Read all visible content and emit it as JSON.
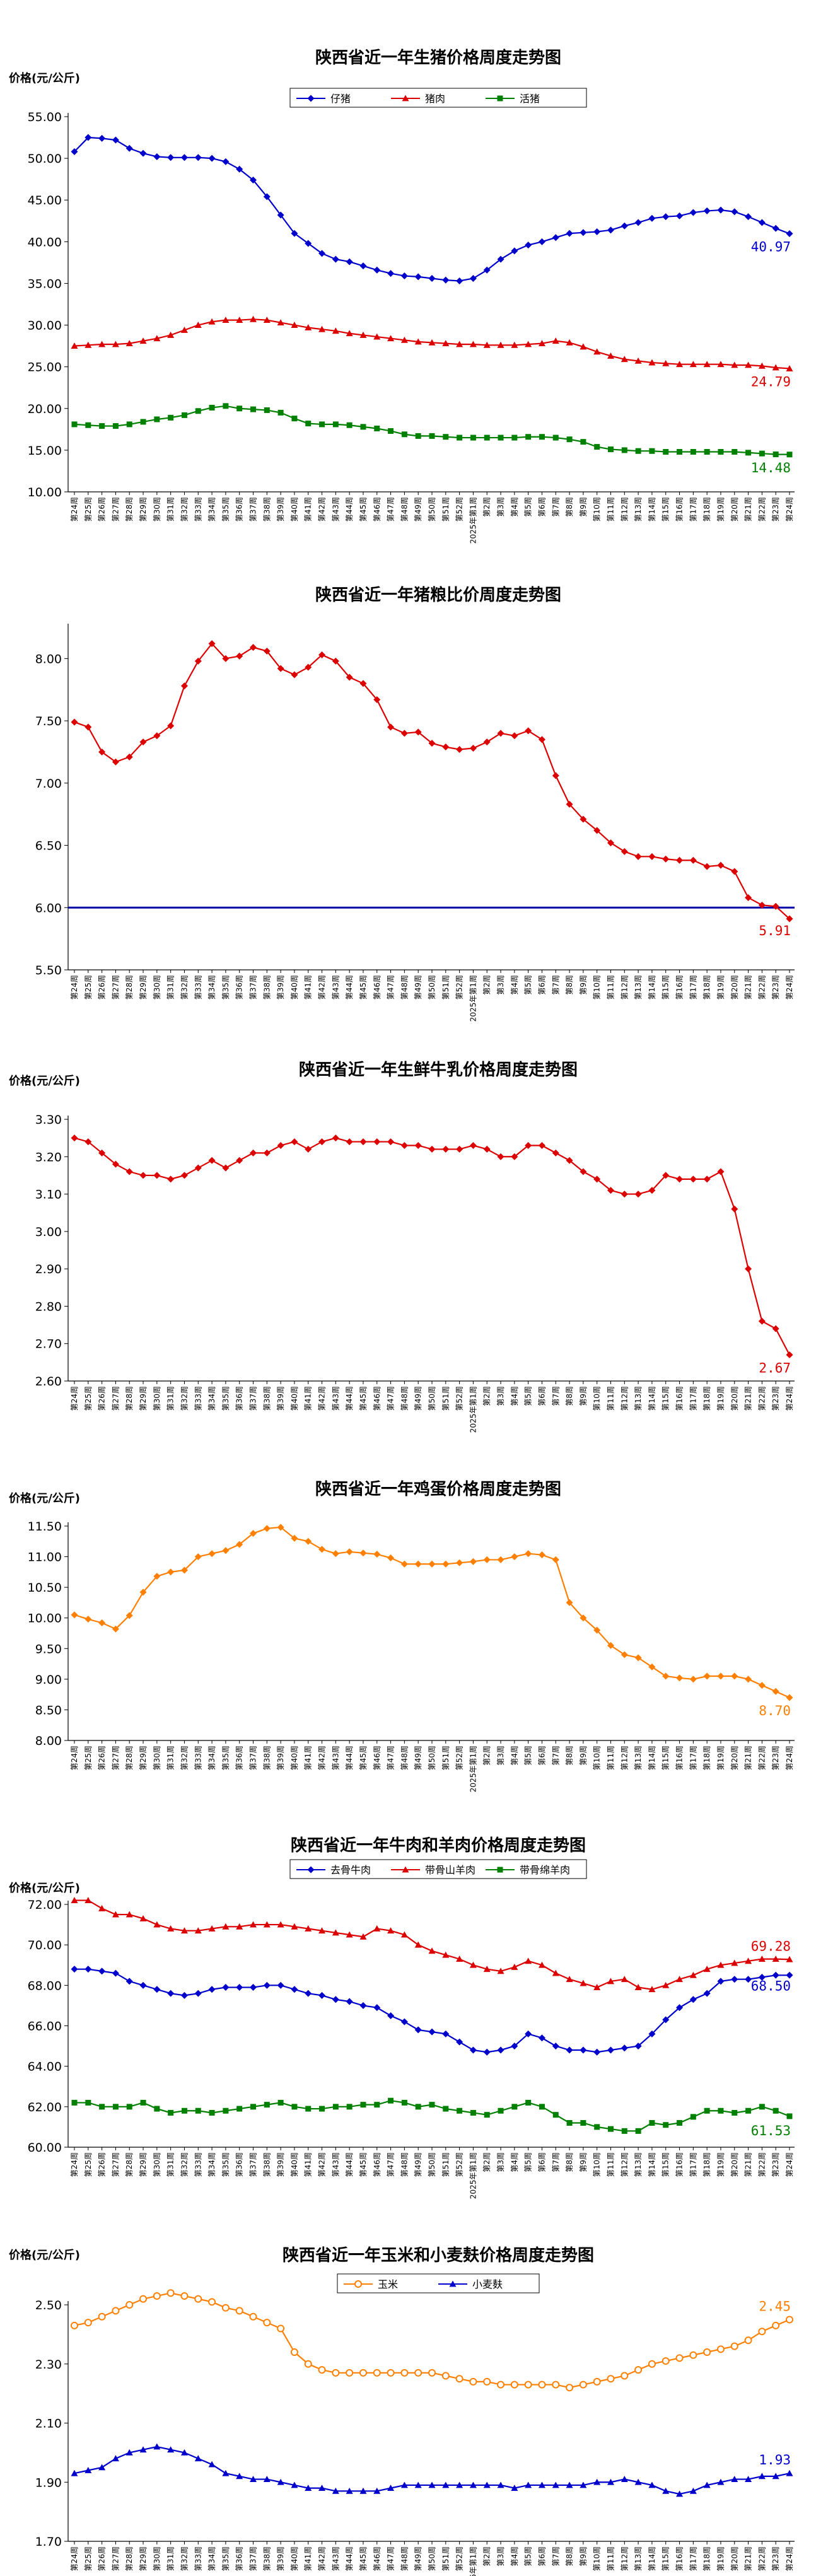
{
  "x_labels": [
    "第24周",
    "第25周",
    "第26周",
    "第27周",
    "第28周",
    "第29周",
    "第30周",
    "第31周",
    "第32周",
    "第33周",
    "第34周",
    "第35周",
    "第36周",
    "第37周",
    "第38周",
    "第39周",
    "第40周",
    "第41周",
    "第42周",
    "第43周",
    "第44周",
    "第45周",
    "第46周",
    "第47周",
    "第48周",
    "第49周",
    "第50周",
    "第51周",
    "第52周",
    "2025年第1周",
    "第2周",
    "第3周",
    "第4周",
    "第5周",
    "第6周",
    "第7周",
    "第8周",
    "第9周",
    "第10周",
    "第11周",
    "第12周",
    "第13周",
    "第14周",
    "第15周",
    "第16周",
    "第17周",
    "第18周",
    "第19周",
    "第20周",
    "第21周",
    "第22周",
    "第23周",
    "第24周"
  ],
  "chart_data": [
    {
      "id": "pig",
      "type": "line",
      "title": "陕西省近一年生猪价格周度走势图",
      "ylabel": "价格(元/公斤)",
      "ylim": [
        10,
        55
      ],
      "yticks": [
        10,
        15,
        20,
        25,
        30,
        35,
        40,
        45,
        50,
        55
      ],
      "ytick_format": 2,
      "legend": "top-center",
      "series": [
        {
          "name": "仔猪",
          "color": "#0000cc",
          "marker": "diamond",
          "last_label": "40.97",
          "values": [
            50.8,
            52.5,
            52.4,
            52.2,
            51.2,
            50.6,
            50.2,
            50.1,
            50.1,
            50.1,
            50.0,
            49.6,
            48.7,
            47.4,
            45.4,
            43.2,
            41.0,
            39.8,
            38.6,
            37.9,
            37.6,
            37.1,
            36.6,
            36.2,
            35.9,
            35.8,
            35.6,
            35.4,
            35.3,
            35.6,
            36.6,
            37.9,
            38.9,
            39.6,
            40.0,
            40.5,
            41.0,
            41.1,
            41.2,
            41.4,
            41.9,
            42.3,
            42.8,
            43.0,
            43.1,
            43.5,
            43.7,
            43.8,
            43.6,
            43.0,
            42.3,
            41.6,
            40.97
          ]
        },
        {
          "name": "猪肉",
          "color": "#dd0000",
          "marker": "triangle",
          "last_label": "24.79",
          "values": [
            27.5,
            27.6,
            27.7,
            27.7,
            27.8,
            28.1,
            28.4,
            28.8,
            29.4,
            30.0,
            30.4,
            30.6,
            30.6,
            30.7,
            30.6,
            30.3,
            30.0,
            29.7,
            29.5,
            29.3,
            29.0,
            28.8,
            28.6,
            28.4,
            28.2,
            28.0,
            27.9,
            27.8,
            27.7,
            27.7,
            27.6,
            27.6,
            27.6,
            27.7,
            27.8,
            28.1,
            27.9,
            27.4,
            26.8,
            26.3,
            25.9,
            25.7,
            25.5,
            25.4,
            25.3,
            25.3,
            25.3,
            25.3,
            25.2,
            25.2,
            25.1,
            24.9,
            24.79
          ]
        },
        {
          "name": "活猪",
          "color": "#008000",
          "marker": "square",
          "last_label": "14.48",
          "values": [
            18.1,
            18.0,
            17.9,
            17.9,
            18.1,
            18.4,
            18.7,
            18.9,
            19.2,
            19.7,
            20.1,
            20.3,
            20.0,
            19.9,
            19.8,
            19.5,
            18.8,
            18.2,
            18.1,
            18.1,
            18.0,
            17.8,
            17.6,
            17.3,
            16.9,
            16.7,
            16.7,
            16.6,
            16.5,
            16.5,
            16.5,
            16.5,
            16.5,
            16.6,
            16.6,
            16.5,
            16.3,
            16.0,
            15.4,
            15.1,
            15.0,
            14.9,
            14.9,
            14.8,
            14.8,
            14.8,
            14.8,
            14.8,
            14.8,
            14.7,
            14.6,
            14.5,
            14.48
          ]
        }
      ]
    },
    {
      "id": "ratio",
      "type": "line",
      "title": "陕西省近一年猪粮比价周度走势图",
      "ylabel": "",
      "ylim": [
        5.5,
        8.25
      ],
      "yticks": [
        5.5,
        6.0,
        6.5,
        7.0,
        7.5,
        8.0
      ],
      "ytick_format": 2,
      "legend": "none",
      "reference_line": {
        "value": 6.0,
        "color": "#0000aa"
      },
      "series": [
        {
          "name": "",
          "color": "#dd0000",
          "marker": "diamond",
          "last_label": "5.91",
          "values": [
            7.49,
            7.45,
            7.25,
            7.17,
            7.21,
            7.33,
            7.38,
            7.46,
            7.78,
            7.98,
            8.12,
            8.0,
            8.02,
            8.09,
            8.06,
            7.92,
            7.87,
            7.93,
            8.03,
            7.98,
            7.85,
            7.8,
            7.67,
            7.45,
            7.4,
            7.41,
            7.32,
            7.29,
            7.27,
            7.28,
            7.33,
            7.4,
            7.38,
            7.42,
            7.35,
            7.06,
            6.83,
            6.71,
            6.62,
            6.52,
            6.45,
            6.41,
            6.41,
            6.39,
            6.38,
            6.38,
            6.33,
            6.34,
            6.29,
            6.08,
            6.02,
            6.01,
            5.91
          ]
        }
      ]
    },
    {
      "id": "milk",
      "type": "line",
      "title": "陕西省近一年生鲜牛乳价格周度走势图",
      "ylabel": "价格(元/公斤)",
      "ylim": [
        2.6,
        3.3
      ],
      "yticks": [
        2.6,
        2.7,
        2.8,
        2.9,
        3.0,
        3.1,
        3.2,
        3.3
      ],
      "ytick_format": 2,
      "legend": "none",
      "series": [
        {
          "name": "",
          "color": "#dd0000",
          "marker": "diamond",
          "last_label": "2.67",
          "values": [
            3.25,
            3.24,
            3.21,
            3.18,
            3.16,
            3.15,
            3.15,
            3.14,
            3.15,
            3.17,
            3.19,
            3.17,
            3.19,
            3.21,
            3.21,
            3.23,
            3.24,
            3.22,
            3.24,
            3.25,
            3.24,
            3.24,
            3.24,
            3.24,
            3.23,
            3.23,
            3.22,
            3.22,
            3.22,
            3.23,
            3.22,
            3.2,
            3.2,
            3.23,
            3.23,
            3.21,
            3.19,
            3.16,
            3.14,
            3.11,
            3.1,
            3.1,
            3.11,
            3.15,
            3.14,
            3.14,
            3.14,
            3.16,
            3.06,
            2.9,
            2.76,
            2.74,
            2.67
          ]
        }
      ]
    },
    {
      "id": "egg",
      "type": "line",
      "title": "陕西省近一年鸡蛋价格周度走势图",
      "ylabel": "价格(元/公斤)",
      "ylim": [
        8.0,
        11.5
      ],
      "yticks": [
        8.0,
        8.5,
        9.0,
        9.5,
        10.0,
        10.5,
        11.0,
        11.5
      ],
      "ytick_format": 2,
      "legend": "none",
      "series": [
        {
          "name": "",
          "color": "#ff8000",
          "marker": "diamond",
          "last_label": "8.70",
          "values": [
            10.05,
            9.98,
            9.92,
            9.82,
            10.04,
            10.42,
            10.68,
            10.75,
            10.78,
            11.0,
            11.05,
            11.1,
            11.2,
            11.38,
            11.46,
            11.48,
            11.3,
            11.25,
            11.12,
            11.05,
            11.08,
            11.06,
            11.04,
            10.98,
            10.88,
            10.88,
            10.88,
            10.88,
            10.9,
            10.92,
            10.95,
            10.95,
            11.0,
            11.05,
            11.03,
            10.95,
            10.25,
            10.0,
            9.8,
            9.55,
            9.4,
            9.35,
            9.2,
            9.05,
            9.02,
            9.0,
            9.05,
            9.05,
            9.05,
            9.0,
            8.9,
            8.8,
            8.7
          ]
        }
      ]
    },
    {
      "id": "beef",
      "type": "line",
      "title": "陕西省近一年牛肉和羊肉价格周度走势图",
      "ylabel": "价格(元/公斤)",
      "ylim": [
        60,
        72
      ],
      "yticks": [
        60,
        62,
        64,
        66,
        68,
        70,
        72
      ],
      "ytick_format": 2,
      "legend": "top-center",
      "series": [
        {
          "name": "去骨牛肉",
          "color": "#0000cc",
          "marker": "diamond",
          "last_label": "68.50",
          "values": [
            68.8,
            68.8,
            68.7,
            68.6,
            68.2,
            68.0,
            67.8,
            67.6,
            67.5,
            67.6,
            67.8,
            67.9,
            67.9,
            67.9,
            68.0,
            68.0,
            67.8,
            67.6,
            67.5,
            67.3,
            67.2,
            67.0,
            66.9,
            66.5,
            66.2,
            65.8,
            65.7,
            65.6,
            65.2,
            64.8,
            64.7,
            64.8,
            65.0,
            65.6,
            65.4,
            65.0,
            64.8,
            64.8,
            64.7,
            64.8,
            64.9,
            65.0,
            65.6,
            66.3,
            66.9,
            67.3,
            67.6,
            68.2,
            68.3,
            68.3,
            68.4,
            68.5,
            68.5
          ]
        },
        {
          "name": "带骨山羊肉",
          "color": "#dd0000",
          "marker": "triangle",
          "last_label": "69.28",
          "values": [
            72.2,
            72.2,
            71.8,
            71.5,
            71.5,
            71.3,
            71.0,
            70.8,
            70.7,
            70.7,
            70.8,
            70.9,
            70.9,
            71.0,
            71.0,
            71.0,
            70.9,
            70.8,
            70.7,
            70.6,
            70.5,
            70.4,
            70.8,
            70.7,
            70.5,
            70.0,
            69.7,
            69.5,
            69.3,
            69.0,
            68.8,
            68.7,
            68.9,
            69.2,
            69.0,
            68.6,
            68.3,
            68.1,
            67.9,
            68.2,
            68.3,
            67.9,
            67.8,
            68.0,
            68.3,
            68.5,
            68.8,
            69.0,
            69.1,
            69.2,
            69.3,
            69.3,
            69.28
          ]
        },
        {
          "name": "带骨绵羊肉",
          "color": "#008000",
          "marker": "square",
          "last_label": "61.53",
          "values": [
            62.2,
            62.2,
            62.0,
            62.0,
            62.0,
            62.2,
            61.9,
            61.7,
            61.8,
            61.8,
            61.7,
            61.8,
            61.9,
            62.0,
            62.1,
            62.2,
            62.0,
            61.9,
            61.9,
            62.0,
            62.0,
            62.1,
            62.1,
            62.3,
            62.2,
            62.0,
            62.1,
            61.9,
            61.8,
            61.7,
            61.6,
            61.8,
            62.0,
            62.2,
            62.0,
            61.6,
            61.2,
            61.2,
            61.0,
            60.9,
            60.8,
            60.8,
            61.2,
            61.1,
            61.2,
            61.5,
            61.8,
            61.8,
            61.7,
            61.8,
            62.0,
            61.8,
            61.53
          ]
        }
      ]
    },
    {
      "id": "grain",
      "type": "line",
      "title": "陕西省近一年玉米和小麦麸价格周度走势图",
      "ylabel": "价格(元/公斤)",
      "ylim": [
        1.7,
        2.5
      ],
      "yticks": [
        1.7,
        1.9,
        2.1,
        2.3,
        2.5
      ],
      "ytick_format": 2,
      "legend": "top-center",
      "series": [
        {
          "name": "玉米",
          "color": "#ff8000",
          "marker": "circle",
          "last_label": "2.45",
          "values": [
            2.43,
            2.44,
            2.46,
            2.48,
            2.5,
            2.52,
            2.53,
            2.54,
            2.53,
            2.52,
            2.51,
            2.49,
            2.48,
            2.46,
            2.44,
            2.42,
            2.34,
            2.3,
            2.28,
            2.27,
            2.27,
            2.27,
            2.27,
            2.27,
            2.27,
            2.27,
            2.27,
            2.26,
            2.25,
            2.24,
            2.24,
            2.23,
            2.23,
            2.23,
            2.23,
            2.23,
            2.22,
            2.23,
            2.24,
            2.25,
            2.26,
            2.28,
            2.3,
            2.31,
            2.32,
            2.33,
            2.34,
            2.35,
            2.36,
            2.38,
            2.41,
            2.43,
            2.45
          ]
        },
        {
          "name": "小麦麸",
          "color": "#0000cc",
          "marker": "triangle",
          "last_label": "1.93",
          "values": [
            1.93,
            1.94,
            1.95,
            1.98,
            2.0,
            2.01,
            2.02,
            2.01,
            2.0,
            1.98,
            1.96,
            1.93,
            1.92,
            1.91,
            1.91,
            1.9,
            1.89,
            1.88,
            1.88,
            1.87,
            1.87,
            1.87,
            1.87,
            1.88,
            1.89,
            1.89,
            1.89,
            1.89,
            1.89,
            1.89,
            1.89,
            1.89,
            1.88,
            1.89,
            1.89,
            1.89,
            1.89,
            1.89,
            1.9,
            1.9,
            1.91,
            1.9,
            1.89,
            1.87,
            1.86,
            1.87,
            1.89,
            1.9,
            1.91,
            1.91,
            1.92,
            1.92,
            1.93
          ]
        }
      ]
    }
  ]
}
